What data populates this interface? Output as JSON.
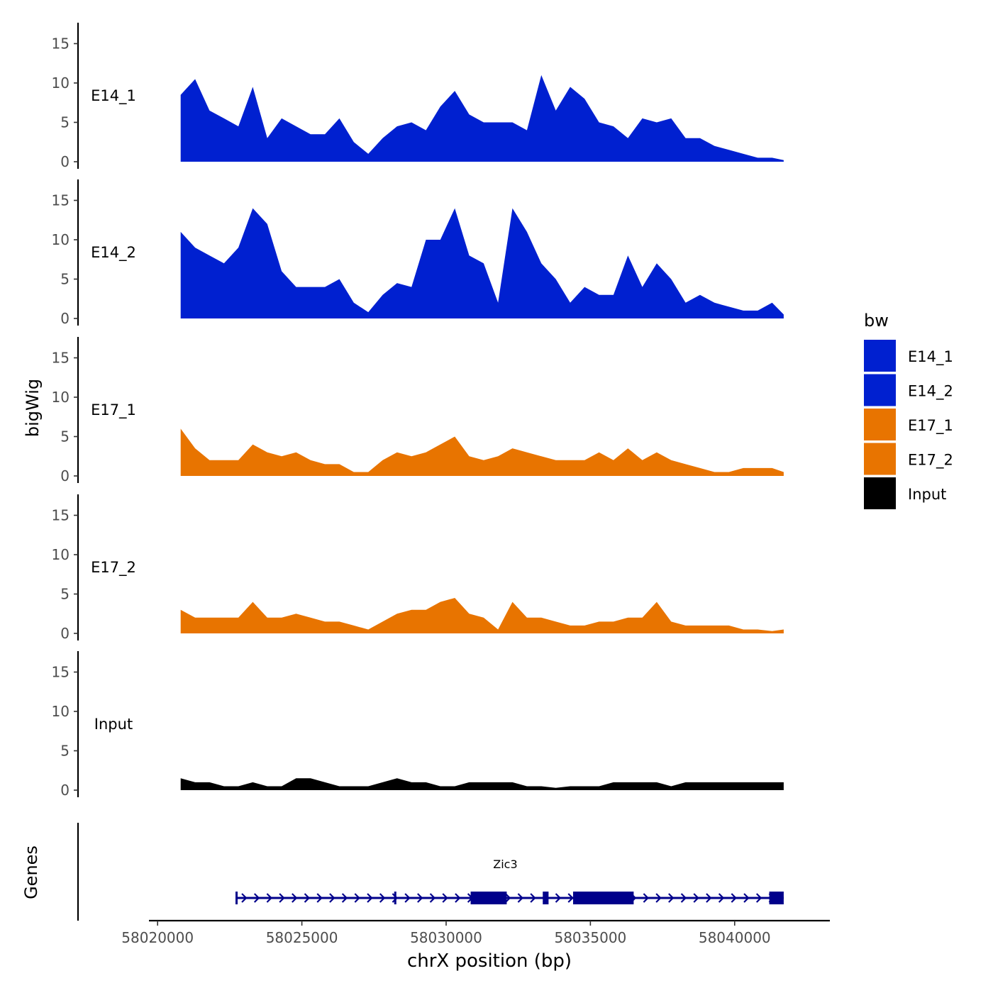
{
  "chart_data": {
    "type": "area",
    "ylabel": "bigWig",
    "xlabel": "chrX position (bp)",
    "genes_label": "Genes",
    "ylim": [
      0,
      17.5
    ],
    "xlim": [
      58019700,
      58043300
    ],
    "y_ticks": [
      0,
      5,
      10,
      15
    ],
    "x_ticks": [
      58020000,
      58025000,
      58030000,
      58035000,
      58040000
    ],
    "x_tick_labels": [
      "58020000",
      "58025000",
      "58030000",
      "58035000",
      "58040000"
    ],
    "legend": {
      "title": "bw",
      "position": "right",
      "entries": [
        {
          "label": "E14_1",
          "color": "#0020d0"
        },
        {
          "label": "E14_2",
          "color": "#0020d0"
        },
        {
          "label": "E17_1",
          "color": "#e87400"
        },
        {
          "label": "E17_2",
          "color": "#e87400"
        },
        {
          "label": "Input",
          "color": "#000000"
        }
      ]
    },
    "x": [
      58020800,
      58021300,
      58021800,
      58022300,
      58022800,
      58023300,
      58023800,
      58024300,
      58024800,
      58025300,
      58025800,
      58026300,
      58026800,
      58027300,
      58027800,
      58028300,
      58028800,
      58029300,
      58029800,
      58030300,
      58030800,
      58031300,
      58031800,
      58032300,
      58032800,
      58033300,
      58033800,
      58034300,
      58034800,
      58035300,
      58035800,
      58036300,
      58036800,
      58037300,
      58037800,
      58038300,
      58038800,
      58039300,
      58039800,
      58040300,
      58040800,
      58041300,
      58041700
    ],
    "series": [
      {
        "name": "E14_1",
        "color": "#0020d0",
        "values": [
          8.5,
          10.5,
          6.5,
          5.5,
          4.5,
          9.5,
          3,
          5.5,
          4.5,
          3.5,
          3.5,
          5.5,
          2.5,
          1,
          3,
          4.5,
          5,
          4,
          7,
          9,
          6,
          5,
          5,
          5,
          4,
          11,
          6.5,
          9.5,
          8,
          5,
          4.5,
          3,
          5.5,
          5,
          5.5,
          3,
          3,
          2,
          1.5,
          1,
          0.5,
          0.5,
          0.2
        ]
      },
      {
        "name": "E14_2",
        "color": "#0020d0",
        "values": [
          11,
          9,
          8,
          7,
          9,
          14,
          12,
          6,
          4,
          4,
          4,
          5,
          2,
          0.8,
          3,
          4.5,
          4,
          10,
          10,
          14,
          8,
          7,
          2,
          14,
          11,
          7,
          5,
          2,
          4,
          3,
          3,
          8,
          4,
          7,
          5,
          2,
          3,
          2,
          1.5,
          1,
          1,
          2,
          0.5
        ]
      },
      {
        "name": "E17_1",
        "color": "#e87400",
        "values": [
          6,
          3.5,
          2,
          2,
          2,
          4,
          3,
          2.5,
          3,
          2,
          1.5,
          1.5,
          0.5,
          0.5,
          2,
          3,
          2.5,
          3,
          4,
          5,
          2.5,
          2,
          2.5,
          3.5,
          3,
          2.5,
          2,
          2,
          2,
          3,
          2,
          3.5,
          2,
          3,
          2,
          1.5,
          1,
          0.5,
          0.5,
          1,
          1,
          1,
          0.5
        ]
      },
      {
        "name": "E17_2",
        "color": "#e87400",
        "values": [
          3,
          2,
          2,
          2,
          2,
          4,
          2,
          2,
          2.5,
          2,
          1.5,
          1.5,
          1,
          0.5,
          1.5,
          2.5,
          3,
          3,
          4,
          4.5,
          2.5,
          2,
          0.5,
          4,
          2,
          2,
          1.5,
          1,
          1,
          1.5,
          1.5,
          2,
          2,
          4,
          1.5,
          1,
          1,
          1,
          1,
          0.5,
          0.5,
          0.3,
          0.5
        ]
      },
      {
        "name": "Input",
        "color": "#000000",
        "values": [
          1.5,
          1,
          1,
          0.5,
          0.5,
          1,
          0.5,
          0.5,
          1.5,
          1.5,
          1,
          0.5,
          0.5,
          0.5,
          1,
          1.5,
          1,
          1,
          0.5,
          0.5,
          1,
          1,
          1,
          1,
          0.5,
          0.5,
          0.3,
          0.5,
          0.5,
          0.5,
          1,
          1,
          1,
          1,
          0.5,
          1,
          1,
          1,
          1,
          1,
          1,
          1,
          1
        ]
      }
    ],
    "gene": {
      "name": "Zic3",
      "color": "#00008b",
      "start": 58022700,
      "end": 58041700,
      "exons": [
        [
          58022700,
          58022750
        ],
        [
          58028200,
          58028240
        ],
        [
          58030850,
          58032100
        ],
        [
          58033350,
          58033550
        ],
        [
          58034400,
          58036500
        ],
        [
          58041200,
          58041700
        ]
      ]
    }
  }
}
